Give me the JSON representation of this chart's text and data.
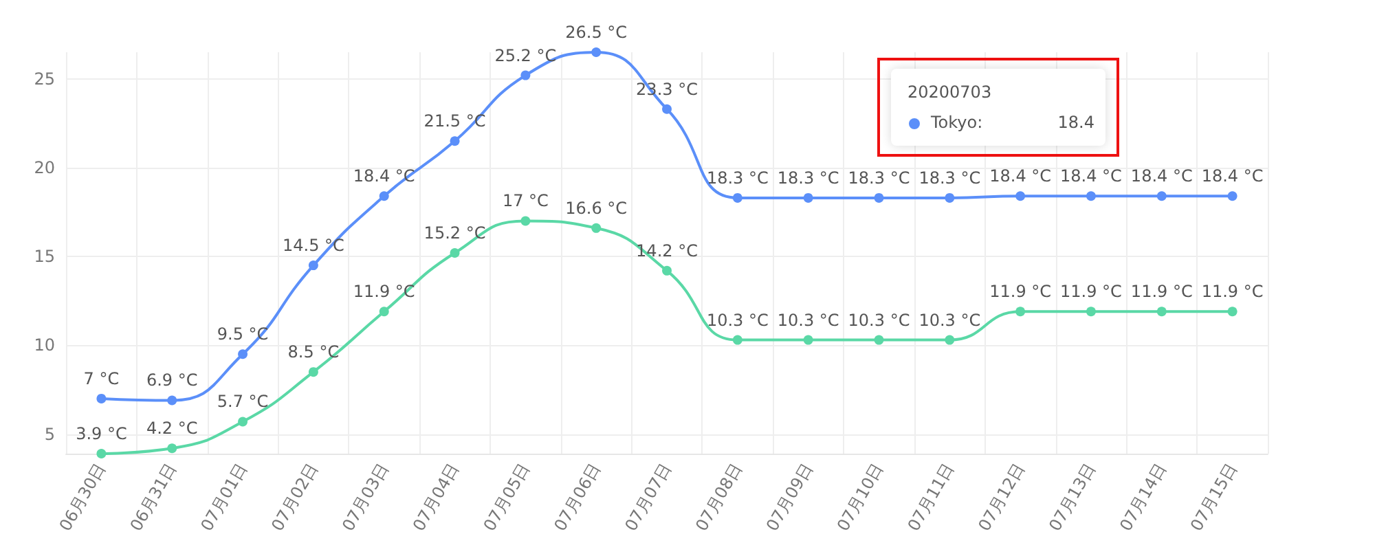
{
  "chart_data": {
    "type": "line",
    "categories": [
      "06月30日",
      "06月31日",
      "07月01日",
      "07月02日",
      "07月03日",
      "07月04日",
      "07月05日",
      "07月06日",
      "07月07日",
      "07月08日",
      "07月09日",
      "07月10日",
      "07月11日",
      "07月12日",
      "07月13日",
      "07月14日",
      "07月15日"
    ],
    "series": [
      {
        "color": "#5b8ff9",
        "values": [
          7,
          6.9,
          9.5,
          14.5,
          18.4,
          21.5,
          25.2,
          26.5,
          23.3,
          18.3,
          18.3,
          18.3,
          18.3,
          18.4,
          18.4,
          18.4,
          18.4
        ],
        "value_labels": [
          "7 °C",
          "6.9 °C",
          "9.5 °C",
          "14.5 °C",
          "18.4 °C",
          "21.5 °C",
          "25.2 °C",
          "26.5 °C",
          "23.3 °C",
          "18.3 °C",
          "18.3 °C",
          "18.3 °C",
          "18.3 °C",
          "18.4 °C",
          "18.4 °C",
          "18.4 °C",
          "18.4 °C"
        ]
      },
      {
        "color": "#5ad8a6",
        "values": [
          3.9,
          4.2,
          5.7,
          8.5,
          11.9,
          15.2,
          17,
          16.6,
          14.2,
          10.3,
          10.3,
          10.3,
          10.3,
          11.9,
          11.9,
          11.9,
          11.9
        ],
        "value_labels": [
          "3.9 °C",
          "4.2 °C",
          "5.7 °C",
          "8.5 °C",
          "11.9 °C",
          "15.2 °C",
          "17 °C",
          "16.6 °C",
          "14.2 °C",
          "10.3 °C",
          "10.3 °C",
          "10.3 °C",
          "10.3 °C",
          "11.9 °C",
          "11.9 °C",
          "11.9 °C",
          "11.9 °C"
        ]
      }
    ],
    "ylim": [
      3.9,
      26.5
    ],
    "yticks": [
      5,
      10,
      15,
      20,
      25
    ],
    "grid": true,
    "marker": "circle",
    "line_style": "solid",
    "annotations": [
      "20200703",
      "Tokyo:",
      "18.4"
    ]
  }
}
